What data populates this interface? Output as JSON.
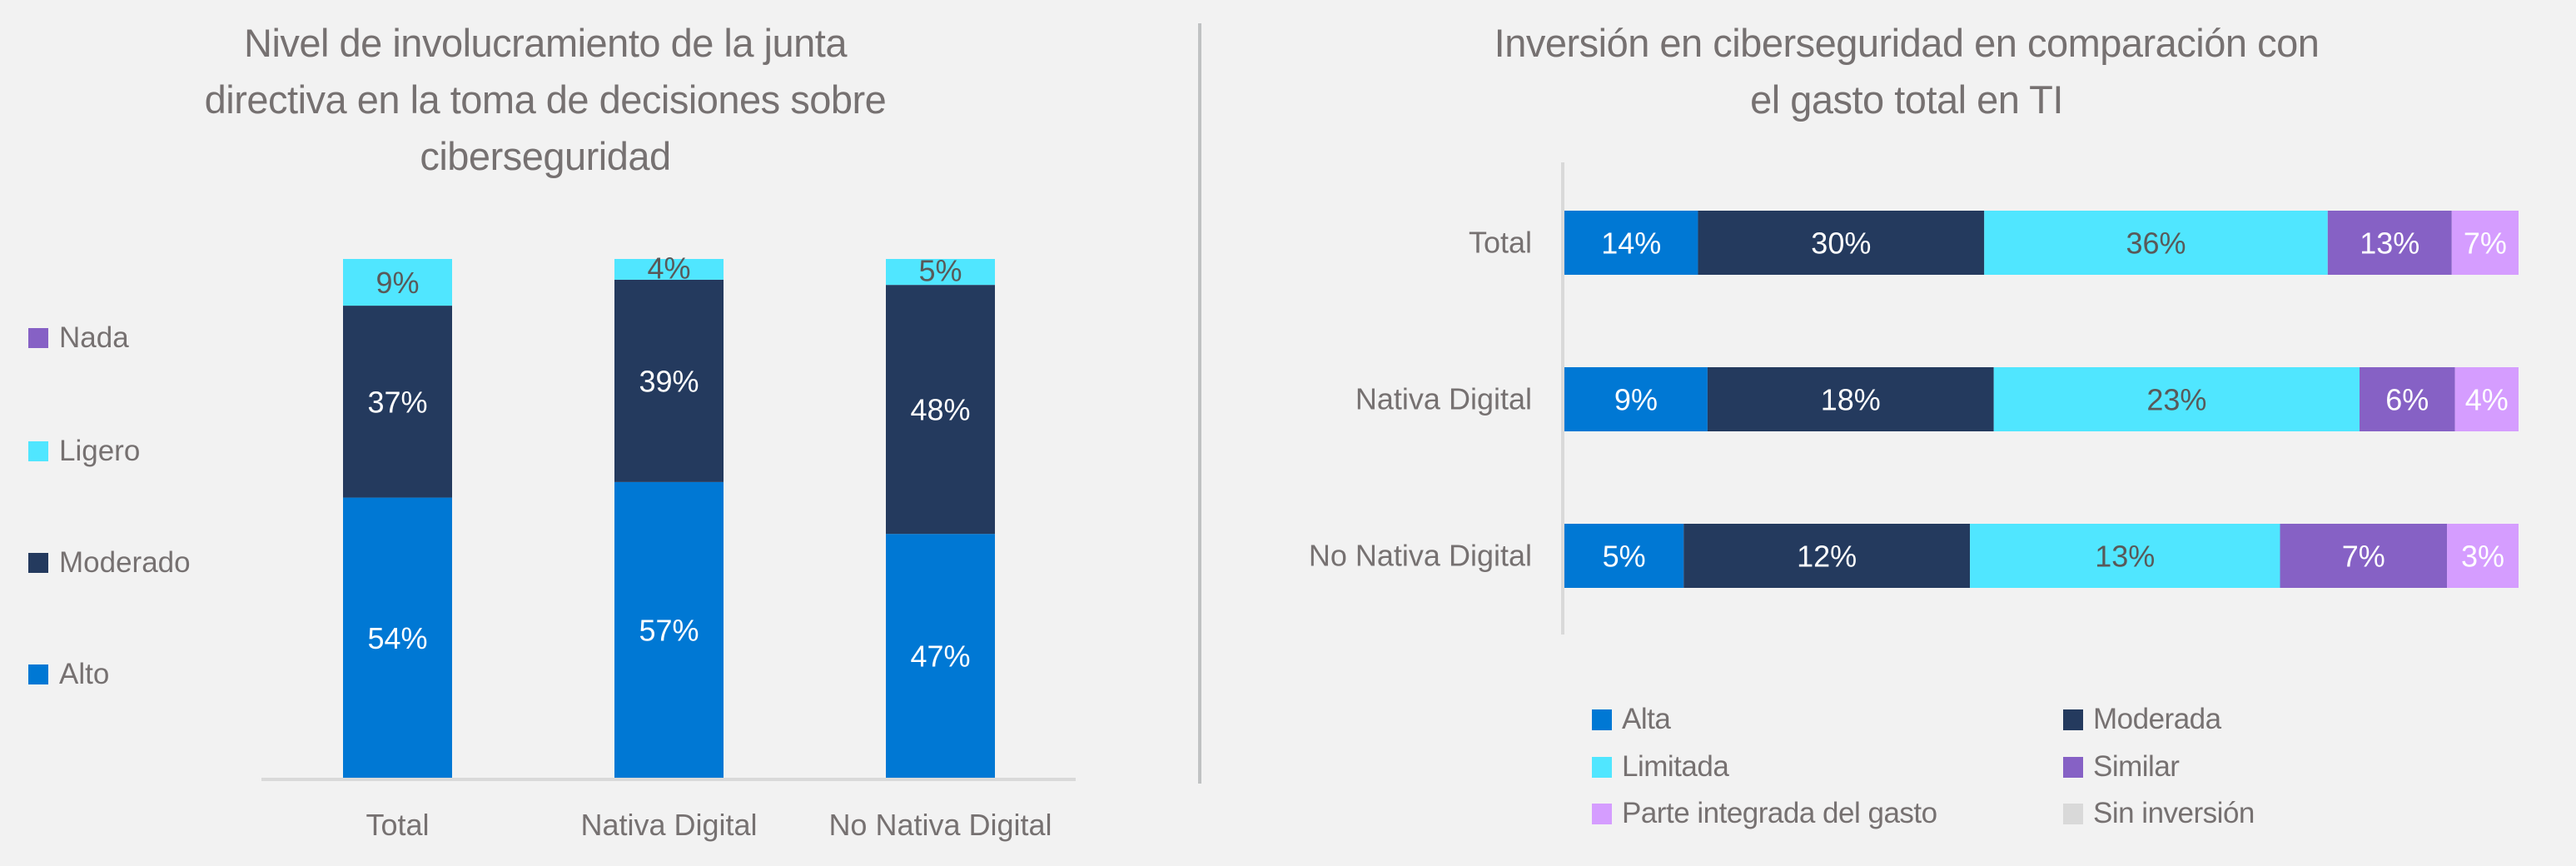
{
  "colors": {
    "background": "#f2f2f2",
    "text": "#767171",
    "axis": "#d9d9d9",
    "divider": "#c0c2c3"
  },
  "chart_data": [
    {
      "type": "bar",
      "orientation": "vertical",
      "stacked": true,
      "title": "Nivel de involucramiento de la junta directiva en la toma de decisiones sobre ciberseguridad",
      "title_lines": [
        "Nivel de involucramiento de la junta",
        "directiva en la toma de decisiones sobre",
        "ciberseguridad"
      ],
      "xlabel": "",
      "ylabel": "",
      "ylim": [
        0,
        100
      ],
      "grid": false,
      "legend_position": "left",
      "categories": [
        "Total",
        "Nativa Digital",
        "No Nativa Digital"
      ],
      "series": [
        {
          "name": "Alto",
          "color": "#0078d4",
          "label_color": "#ffffff",
          "values": [
            54,
            57,
            47
          ],
          "labels": [
            "54%",
            "57%",
            "47%"
          ]
        },
        {
          "name": "Moderado",
          "color": "#243a5e",
          "label_color": "#ffffff",
          "values": [
            37,
            39,
            48
          ],
          "labels": [
            "37%",
            "39%",
            "48%"
          ]
        },
        {
          "name": "Ligero",
          "color": "#50e6ff",
          "label_color": "#595959",
          "values": [
            9,
            4,
            5
          ],
          "labels": [
            "9%",
            "4%",
            "5%"
          ]
        },
        {
          "name": "Nada",
          "color": "#8661c5",
          "label_color": "#ffffff",
          "values": [
            0,
            0,
            0
          ],
          "labels": [
            "",
            "",
            ""
          ]
        }
      ],
      "legend_order": [
        "Nada",
        "Ligero",
        "Moderado",
        "Alto"
      ]
    },
    {
      "type": "bar",
      "orientation": "horizontal",
      "stacked": true,
      "normalized": true,
      "title": "Inversión en ciberseguridad en comparación con el gasto total en TI",
      "title_lines": [
        "Inversión en ciberseguridad en comparación con",
        "el gasto total en TI"
      ],
      "xlabel": "",
      "ylabel": "",
      "grid": false,
      "legend_position": "bottom",
      "categories": [
        "Total",
        "Nativa Digital",
        "No Nativa Digital"
      ],
      "series": [
        {
          "name": "Alta",
          "color": "#0078d4",
          "label_color": "#ffffff",
          "values": [
            14,
            9,
            5
          ],
          "labels": [
            "14%",
            "9%",
            "5%"
          ]
        },
        {
          "name": "Moderada",
          "color": "#243a5e",
          "label_color": "#ffffff",
          "values": [
            30,
            18,
            12
          ],
          "labels": [
            "30%",
            "18%",
            "12%"
          ]
        },
        {
          "name": "Limitada",
          "color": "#50e6ff",
          "label_color": "#595959",
          "values": [
            36,
            23,
            13
          ],
          "labels": [
            "36%",
            "23%",
            "13%"
          ]
        },
        {
          "name": "Similar",
          "color": "#8661c5",
          "label_color": "#ffffff",
          "values": [
            13,
            6,
            7
          ],
          "labels": [
            "13%",
            "6%",
            "7%"
          ]
        },
        {
          "name": "Parte integrada del gasto",
          "color": "#d59dff",
          "label_color": "#ffffff",
          "values": [
            7,
            4,
            3
          ],
          "labels": [
            "7%",
            "4%",
            "3%"
          ]
        },
        {
          "name": "Sin inversión",
          "color": "#d9d9d9",
          "label_color": "#595959",
          "values": [
            0,
            0,
            0
          ],
          "labels": [
            "",
            "",
            ""
          ]
        }
      ],
      "legend_order": [
        "Alta",
        "Moderada",
        "Limitada",
        "Similar",
        "Parte integrada del gasto",
        "Sin inversión"
      ]
    }
  ]
}
